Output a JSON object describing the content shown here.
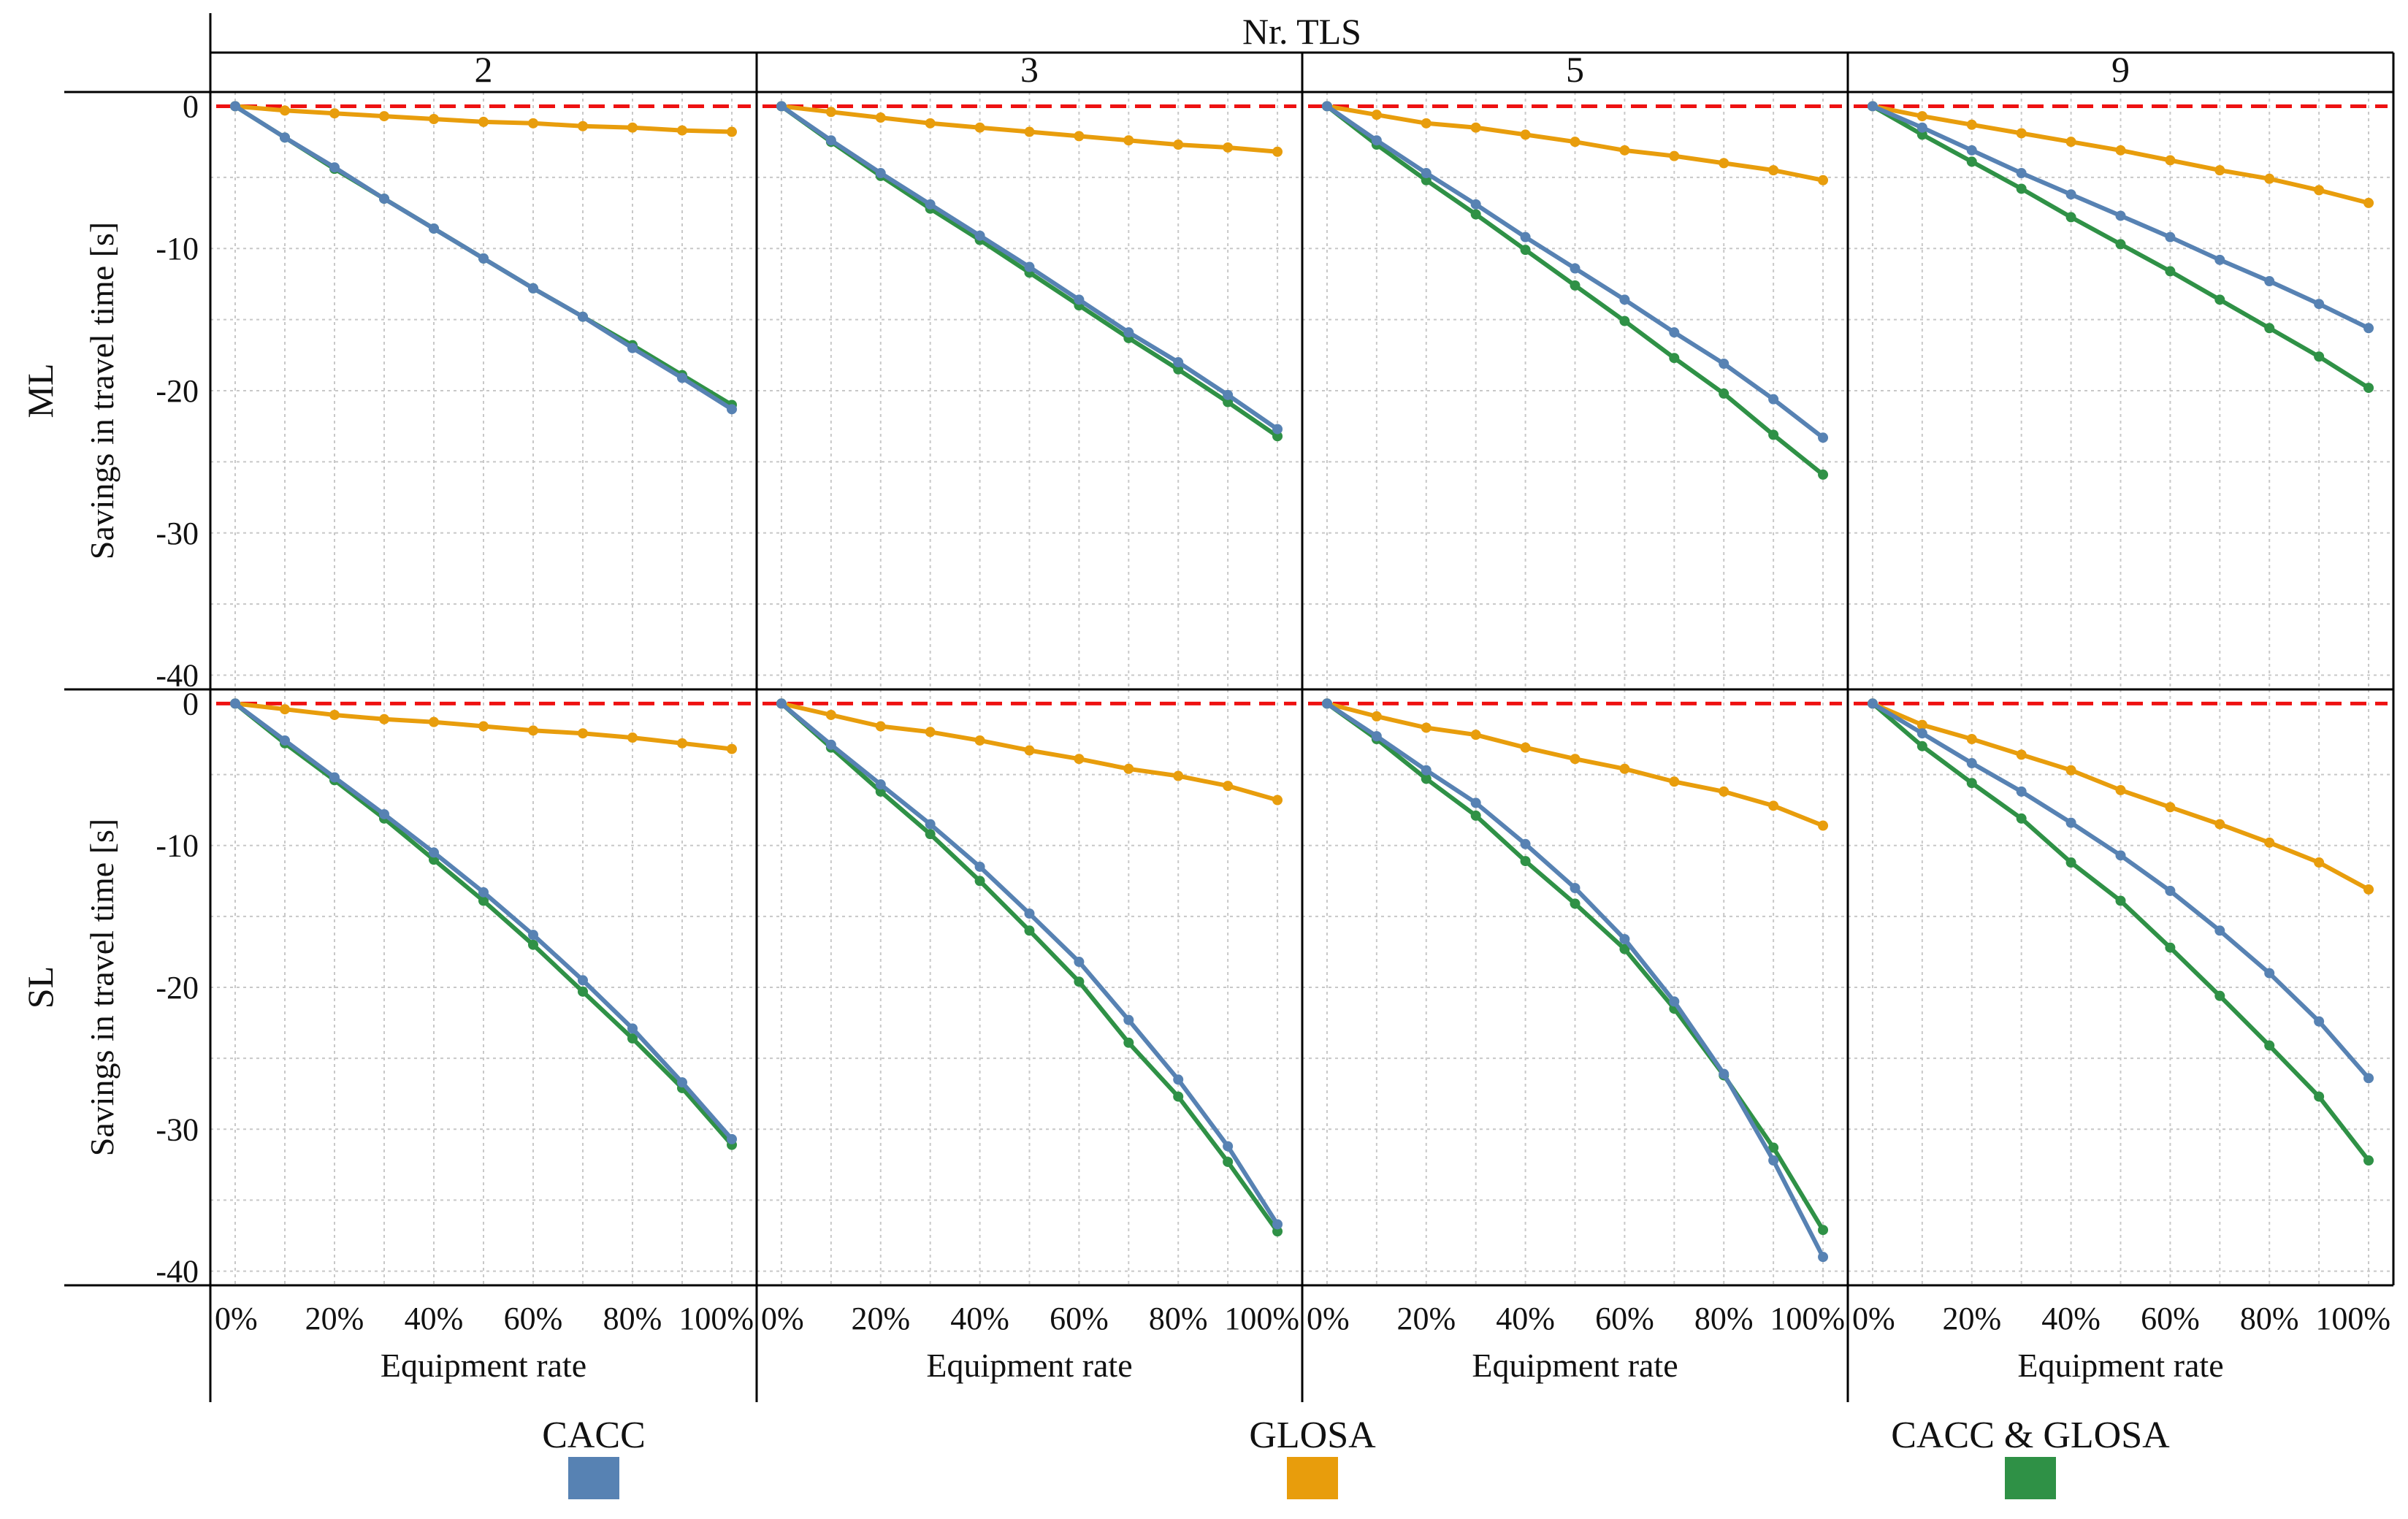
{
  "chart_data": {
    "type": "line",
    "column_title": "Nr. TLS",
    "columns": [
      "2",
      "3",
      "5",
      "9"
    ],
    "rows": [
      "ML",
      "SL"
    ],
    "xlabel": "Equipment rate",
    "ylabel": "Savings in travel time [s]",
    "x": [
      0,
      10,
      20,
      30,
      40,
      50,
      60,
      70,
      80,
      90,
      100
    ],
    "x_ticks": [
      {
        "value": 0,
        "label": "0%"
      },
      {
        "value": 20,
        "label": "20%"
      },
      {
        "value": 40,
        "label": "40%"
      },
      {
        "value": 60,
        "label": "60%"
      },
      {
        "value": 80,
        "label": "80%"
      },
      {
        "value": 100,
        "label": "100%"
      }
    ],
    "y_ticks": [
      {
        "value": 0,
        "label": "0"
      },
      {
        "value": -10,
        "label": "-10"
      },
      {
        "value": -20,
        "label": "-20"
      },
      {
        "value": -30,
        "label": "-30"
      },
      {
        "value": -40,
        "label": "-40"
      }
    ],
    "ylim": [
      -41,
      1
    ],
    "xlim": [
      -5,
      105
    ],
    "reference_line": 0,
    "legend": [
      {
        "name": "CACC",
        "color": "#5782b3"
      },
      {
        "name": "GLOSA",
        "color": "#e89d0c"
      },
      {
        "name": "CACC & GLOSA",
        "color": "#2f9146"
      }
    ],
    "panels": [
      {
        "row": "ML",
        "column": "2",
        "series": {
          "CACC": [
            0,
            -2.2,
            -4.3,
            -6.5,
            -8.6,
            -10.7,
            -12.8,
            -14.8,
            -17.0,
            -19.1,
            -21.3
          ],
          "GLOSA": [
            0,
            -0.3,
            -0.5,
            -0.7,
            -0.9,
            -1.1,
            -1.2,
            -1.4,
            -1.5,
            -1.7,
            -1.8
          ],
          "CACC & GLOSA": [
            0,
            -2.2,
            -4.4,
            -6.5,
            -8.6,
            -10.7,
            -12.8,
            -14.8,
            -16.8,
            -18.9,
            -21.0
          ]
        }
      },
      {
        "row": "ML",
        "column": "3",
        "series": {
          "CACC": [
            0,
            -2.4,
            -4.7,
            -6.9,
            -9.1,
            -11.3,
            -13.6,
            -15.9,
            -18.0,
            -20.3,
            -22.7
          ],
          "GLOSA": [
            0,
            -0.4,
            -0.8,
            -1.2,
            -1.5,
            -1.8,
            -2.1,
            -2.4,
            -2.7,
            -2.9,
            -3.2
          ],
          "CACC & GLOSA": [
            0,
            -2.5,
            -4.9,
            -7.2,
            -9.4,
            -11.7,
            -14.0,
            -16.3,
            -18.5,
            -20.8,
            -23.2
          ]
        }
      },
      {
        "row": "ML",
        "column": "5",
        "series": {
          "CACC": [
            0,
            -2.4,
            -4.7,
            -6.9,
            -9.2,
            -11.4,
            -13.6,
            -15.9,
            -18.1,
            -20.6,
            -23.3
          ],
          "GLOSA": [
            0,
            -0.6,
            -1.2,
            -1.5,
            -2.0,
            -2.5,
            -3.1,
            -3.5,
            -4.0,
            -4.5,
            -5.2
          ],
          "CACC & GLOSA": [
            0,
            -2.7,
            -5.2,
            -7.6,
            -10.1,
            -12.6,
            -15.1,
            -17.7,
            -20.2,
            -23.1,
            -25.9
          ]
        }
      },
      {
        "row": "ML",
        "column": "9",
        "series": {
          "CACC": [
            0,
            -1.5,
            -3.1,
            -4.7,
            -6.2,
            -7.7,
            -9.2,
            -10.8,
            -12.3,
            -13.9,
            -15.6
          ],
          "GLOSA": [
            0,
            -0.7,
            -1.3,
            -1.9,
            -2.5,
            -3.1,
            -3.8,
            -4.5,
            -5.1,
            -5.9,
            -6.8
          ],
          "CACC & GLOSA": [
            0,
            -2.0,
            -3.9,
            -5.8,
            -7.8,
            -9.7,
            -11.6,
            -13.6,
            -15.6,
            -17.6,
            -19.8
          ]
        }
      },
      {
        "row": "SL",
        "column": "2",
        "series": {
          "CACC": [
            0,
            -2.6,
            -5.2,
            -7.8,
            -10.5,
            -13.3,
            -16.3,
            -19.5,
            -22.9,
            -26.7,
            -30.7
          ],
          "GLOSA": [
            0,
            -0.4,
            -0.8,
            -1.1,
            -1.3,
            -1.6,
            -1.9,
            -2.1,
            -2.4,
            -2.8,
            -3.2
          ],
          "CACC & GLOSA": [
            0,
            -2.8,
            -5.4,
            -8.1,
            -11.0,
            -13.9,
            -17.0,
            -20.3,
            -23.6,
            -27.1,
            -31.1
          ]
        }
      },
      {
        "row": "SL",
        "column": "3",
        "series": {
          "CACC": [
            0,
            -2.9,
            -5.7,
            -8.5,
            -11.5,
            -14.8,
            -18.2,
            -22.3,
            -26.5,
            -31.2,
            -36.7
          ],
          "GLOSA": [
            0,
            -0.8,
            -1.6,
            -2.0,
            -2.6,
            -3.3,
            -3.9,
            -4.6,
            -5.1,
            -5.8,
            -6.8
          ],
          "CACC & GLOSA": [
            0,
            -3.1,
            -6.2,
            -9.2,
            -12.5,
            -16.0,
            -19.6,
            -23.9,
            -27.7,
            -32.3,
            -37.2
          ]
        }
      },
      {
        "row": "SL",
        "column": "5",
        "series": {
          "CACC": [
            0,
            -2.3,
            -4.7,
            -7.0,
            -9.9,
            -13.0,
            -16.6,
            -21.0,
            -26.1,
            -32.2,
            -39.0
          ],
          "GLOSA": [
            0,
            -0.9,
            -1.7,
            -2.2,
            -3.1,
            -3.9,
            -4.6,
            -5.5,
            -6.2,
            -7.2,
            -8.6
          ],
          "CACC & GLOSA": [
            0,
            -2.5,
            -5.3,
            -7.9,
            -11.1,
            -14.1,
            -17.3,
            -21.5,
            -26.2,
            -31.3,
            -37.1
          ]
        }
      },
      {
        "row": "SL",
        "column": "9",
        "series": {
          "CACC": [
            0,
            -2.1,
            -4.2,
            -6.2,
            -8.4,
            -10.7,
            -13.2,
            -16.0,
            -19.0,
            -22.4,
            -26.4
          ],
          "GLOSA": [
            0,
            -1.5,
            -2.5,
            -3.6,
            -4.7,
            -6.1,
            -7.3,
            -8.5,
            -9.8,
            -11.2,
            -13.1
          ],
          "CACC & GLOSA": [
            0,
            -3.0,
            -5.6,
            -8.1,
            -11.2,
            -13.9,
            -17.2,
            -20.6,
            -24.1,
            -27.7,
            -32.2
          ]
        }
      }
    ]
  }
}
